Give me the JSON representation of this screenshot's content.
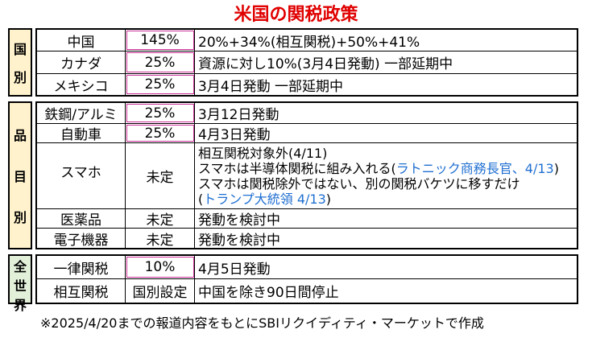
{
  "title": "米国の関税政策",
  "categories": {
    "country": [
      "国",
      "別"
    ],
    "item": [
      "品",
      "目",
      "別"
    ],
    "world": [
      "全",
      "世",
      "界"
    ]
  },
  "rows": {
    "china": {
      "name": "中国",
      "rate": "145%",
      "detail": "20%+34%(相互関税)+50%+41%"
    },
    "canada": {
      "name": "カナダ",
      "rate": "25%",
      "detail": "資源に対し10%(3月4日発動) 一部延期中"
    },
    "mexico": {
      "name": "メキシコ",
      "rate": "25%",
      "detail": "3月4日発動 一部延期中"
    },
    "steel": {
      "name": "鉄鋼/アルミ",
      "rate": "25%",
      "detail": "3月12日発動"
    },
    "auto": {
      "name": "自動車",
      "rate": "25%",
      "detail": "4月3日発動"
    },
    "phone": {
      "name": "スマホ",
      "rate": "未定",
      "line1": "相互関税対象外(4/11)",
      "line2a": "スマホは半導体関税に組み入れる(",
      "line2b": "ラトニック商務長官、4/13",
      "line2c": ")",
      "line3": "スマホは関税除外ではない、別の関税バケツに移すだけ",
      "line4a": "(",
      "line4b": "トランプ大統領 4/13",
      "line4c": ")"
    },
    "pharma": {
      "name": "医薬品",
      "rate": "未定",
      "detail": "発動を検討中"
    },
    "electronics": {
      "name": "電子機器",
      "rate": "未定",
      "detail": "発動を検討中"
    },
    "flat": {
      "name": "一律関税",
      "rate": "10%",
      "detail": "4月5日発動"
    },
    "reciprocal": {
      "name": "相互関税",
      "rate": "国別設定",
      "detail": "中国を除き90日間停止"
    }
  },
  "note": "※2025/4/20までの報道内容をもとにSBIリクイディティ・マーケットで作成",
  "colors": {
    "title": "#e00000",
    "link": "#1f6fd1",
    "country_bg": "#fff2cc",
    "world_bg": "#e2efd9",
    "rate_outline": "#cc3399"
  }
}
